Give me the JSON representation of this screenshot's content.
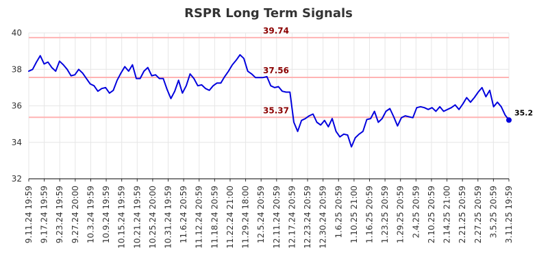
{
  "chart_data": {
    "type": "line",
    "title": "RSPR Long Term Signals",
    "xlabel": "",
    "ylabel": "",
    "ylim": [
      32,
      40
    ],
    "yticks": [
      32,
      34,
      36,
      38,
      40
    ],
    "grid": true,
    "x_tick_labels": [
      "9.11.24 19:59",
      "9.17.24 19:59",
      "9.23.24 19:59",
      "9.27.24 20:00",
      "10.3.24 19:59",
      "10.9.24 19:59",
      "10.15.24 19:59",
      "10.21.24 19:59",
      "10.25.24 20:00",
      "10.31.24 19:59",
      "11.6.24 20:59",
      "11.12.24 20:59",
      "11.18.24 20:59",
      "11.22.24 21:00",
      "11.29.24 18:00",
      "12.5.24 20:59",
      "12.11.24 20:59",
      "12.17.24 20:59",
      "12.23.24 20:59",
      "12.30.24 20:59",
      "1.6.25 20:59",
      "1.10.25 21:00",
      "1.16.25 20:59",
      "1.23.25 20:59",
      "1.29.25 20:59",
      "2.4.25 20:59",
      "2.10.25 20:59",
      "2.14.25 21:00",
      "2.21.25 20:59",
      "2.27.25 20:59",
      "3.5.25 20:59",
      "3.11.25 19:59"
    ],
    "levels": [
      {
        "value": 39.74,
        "label": "39.74",
        "color": "#ffb3b3"
      },
      {
        "value": 37.56,
        "label": "37.56",
        "color": "#ffb3b3"
      },
      {
        "value": 35.37,
        "label": "35.37",
        "color": "#ffb3b3"
      }
    ],
    "series": [
      {
        "name": "RSPR",
        "color": "#0000dd",
        "values": [
          37.9,
          38.0,
          38.4,
          38.75,
          38.3,
          38.4,
          38.1,
          37.9,
          38.45,
          38.25,
          38.0,
          37.65,
          37.7,
          38.0,
          37.8,
          37.5,
          37.2,
          37.1,
          36.8,
          36.95,
          37.0,
          36.7,
          36.85,
          37.4,
          37.8,
          38.15,
          37.9,
          38.25,
          37.5,
          37.5,
          37.9,
          38.1,
          37.65,
          37.7,
          37.5,
          37.5,
          36.9,
          36.4,
          36.8,
          37.4,
          36.7,
          37.1,
          37.75,
          37.5,
          37.1,
          37.15,
          36.95,
          36.85,
          37.1,
          37.25,
          37.25,
          37.6,
          37.9,
          38.25,
          38.5,
          38.8,
          38.6,
          37.9,
          37.75,
          37.55,
          37.55,
          37.55,
          37.6,
          37.1,
          37.0,
          37.05,
          36.8,
          36.75,
          36.75,
          35.1,
          34.6,
          35.2,
          35.3,
          35.45,
          35.55,
          35.1,
          34.95,
          35.2,
          34.85,
          35.3,
          34.6,
          34.3,
          34.45,
          34.4,
          33.75,
          34.25,
          34.45,
          34.6,
          35.25,
          35.3,
          35.7,
          35.1,
          35.3,
          35.7,
          35.85,
          35.4,
          34.9,
          35.35,
          35.45,
          35.4,
          35.35,
          35.9,
          35.95,
          35.9,
          35.8,
          35.9,
          35.7,
          35.95,
          35.7,
          35.8,
          35.9,
          36.05,
          35.8,
          36.1,
          36.45,
          36.2,
          36.45,
          36.75,
          37.0,
          36.5,
          36.85,
          35.95,
          36.2,
          35.95,
          35.5,
          35.22
        ]
      }
    ],
    "last_value": 35.22,
    "last_label": "35.2"
  }
}
